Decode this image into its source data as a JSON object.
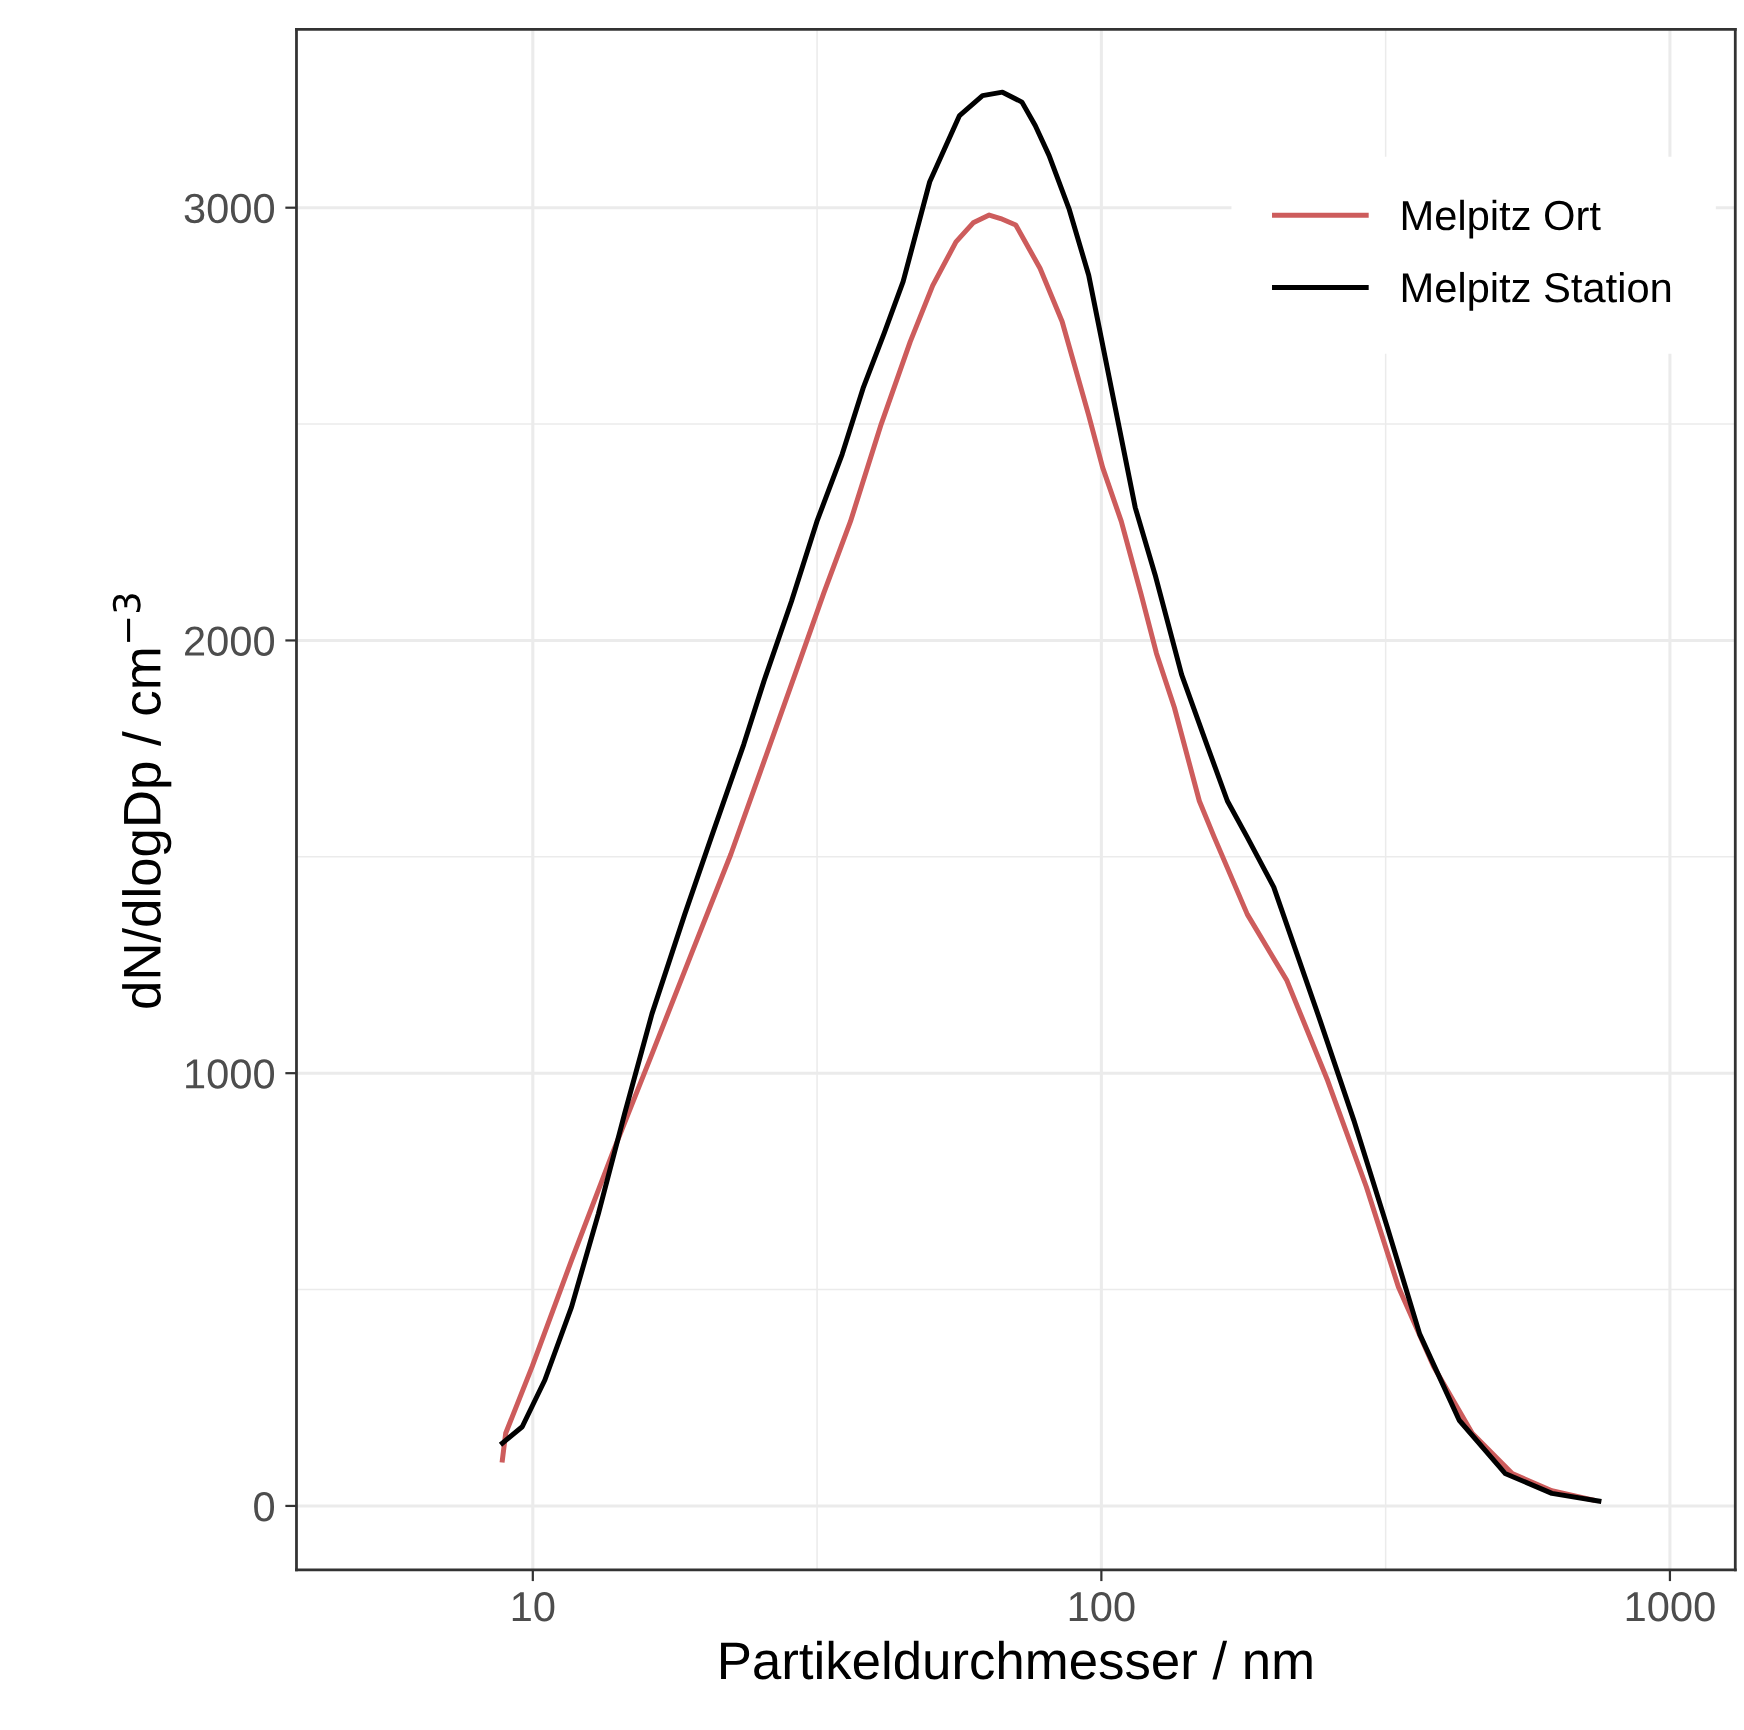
{
  "chart_data": {
    "type": "line",
    "xlabel": "Partikeldurchmesser / nm",
    "ylabel": "dN/dlogDp / cm$^{−3}$",
    "log": "x",
    "grid": true,
    "legend": "top right",
    "xlim": [
      3.84,
      1303
    ],
    "xticks": [
      10,
      100,
      1000
    ],
    "ylim": [
      -148,
      3412
    ],
    "yticks": [
      0,
      1000,
      2000,
      3000
    ],
    "series": [
      {
        "name": "Melpitz Ort",
        "color": "#cd5c5c",
        "x": [
          8.84,
          8.96,
          9.98,
          11.7,
          13.8,
          16.2,
          19.0,
          22.3,
          25.5,
          29.2,
          32.5,
          36.2,
          41.0,
          46.1,
          50.5,
          55.5,
          59.5,
          63.5,
          66.5,
          70.7,
          78.0,
          85.3,
          95.0,
          100.5,
          108.4,
          117.5,
          125.0,
          134.4,
          148.7,
          158,
          180.6,
          212,
          250,
          292.5,
          333,
          384,
          449,
          528,
          620,
          730
        ],
        "values": [
          106,
          168,
          323,
          568,
          814,
          1044,
          1275,
          1506,
          1720,
          1937,
          2110,
          2275,
          2500,
          2690,
          2820,
          2921,
          2965,
          2983,
          2975,
          2960,
          2860,
          2737,
          2520,
          2400,
          2275,
          2106,
          1970,
          1845,
          1629,
          1545,
          1367,
          1214,
          983,
          737,
          506,
          322,
          168,
          75,
          35,
          14
        ]
      },
      {
        "name": "Melpitz Station",
        "color": "#000000",
        "x": [
          8.84,
          9.58,
          10.5,
          11.7,
          13.04,
          14.5,
          16.2,
          18.5,
          20.6,
          23.5,
          25.5,
          28.5,
          31.6,
          35.0,
          38.1,
          41.5,
          44.8,
          49.9,
          56.3,
          61.8,
          67.0,
          72.5,
          76.5,
          80.9,
          87.7,
          95.0,
          105.8,
          114.7,
          124.3,
          138.4,
          153.9,
          166.6,
          180.6,
          201,
          242.6,
          278,
          318,
          363,
          426,
          513,
          620,
          750
        ],
        "values": [
          145,
          183,
          291,
          460,
          675,
          906,
          1137,
          1367,
          1545,
          1760,
          1906,
          2090,
          2275,
          2430,
          2583,
          2710,
          2829,
          3060,
          3213,
          3259,
          3267,
          3244,
          3190,
          3121,
          2998,
          2844,
          2537,
          2307,
          2152,
          1921,
          1753,
          1629,
          1545,
          1430,
          1121,
          891,
          646,
          397,
          198,
          75,
          29,
          11
        ]
      }
    ]
  }
}
